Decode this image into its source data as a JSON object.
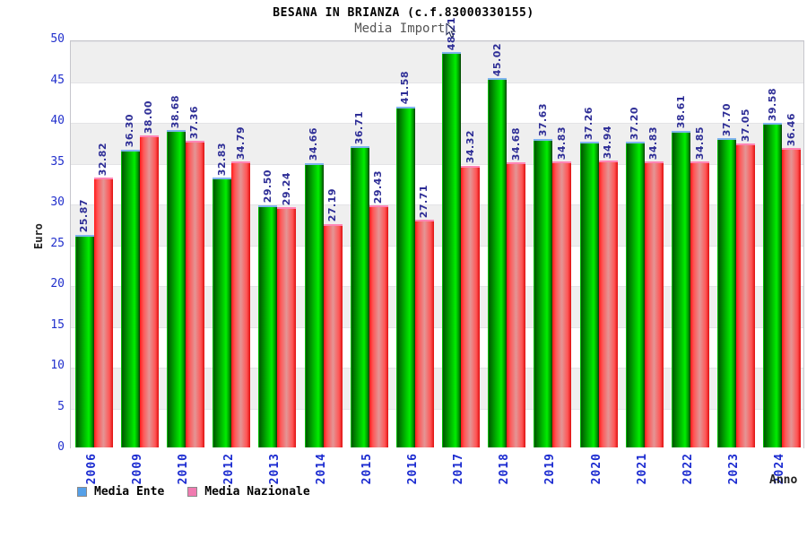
{
  "chart_data": {
    "type": "bar",
    "title": "BESANA IN BRIANZA (c.f.83000330155)",
    "subtitle": "Media Importi",
    "xlabel": "Anno",
    "ylabel": "Euro",
    "ylim": [
      0,
      50
    ],
    "ytick_step": 5,
    "yticks": [
      0,
      5,
      10,
      15,
      20,
      25,
      30,
      35,
      40,
      45,
      50
    ],
    "grid": "horizontal-bands-alternating",
    "legend_position": "bottom-left",
    "categories": [
      "2006",
      "2009",
      "2010",
      "2012",
      "2013",
      "2014",
      "2015",
      "2016",
      "2017",
      "2018",
      "2019",
      "2020",
      "2021",
      "2022",
      "2023",
      "2024"
    ],
    "series": [
      {
        "name": "Media Ente",
        "legend_color": "#55a0e8",
        "bar_color": "#00cc00",
        "values": [
          25.87,
          36.3,
          38.68,
          32.83,
          29.5,
          34.66,
          36.71,
          41.58,
          48.21,
          45.02,
          37.63,
          37.26,
          37.2,
          38.61,
          37.7,
          39.58
        ]
      },
      {
        "name": "Media Nazionale",
        "legend_color": "#f07bb0",
        "bar_color": "#ee3333",
        "values": [
          32.82,
          38.0,
          37.36,
          34.79,
          29.24,
          27.19,
          29.43,
          27.71,
          34.32,
          34.68,
          34.83,
          34.94,
          34.83,
          34.85,
          37.05,
          36.46
        ]
      }
    ],
    "colors": {
      "band_gray": "#efefef",
      "axis_text_blue": "#2230cc",
      "value_label_navy": "#2d2d96",
      "subtitle_gray": "#555555"
    }
  }
}
